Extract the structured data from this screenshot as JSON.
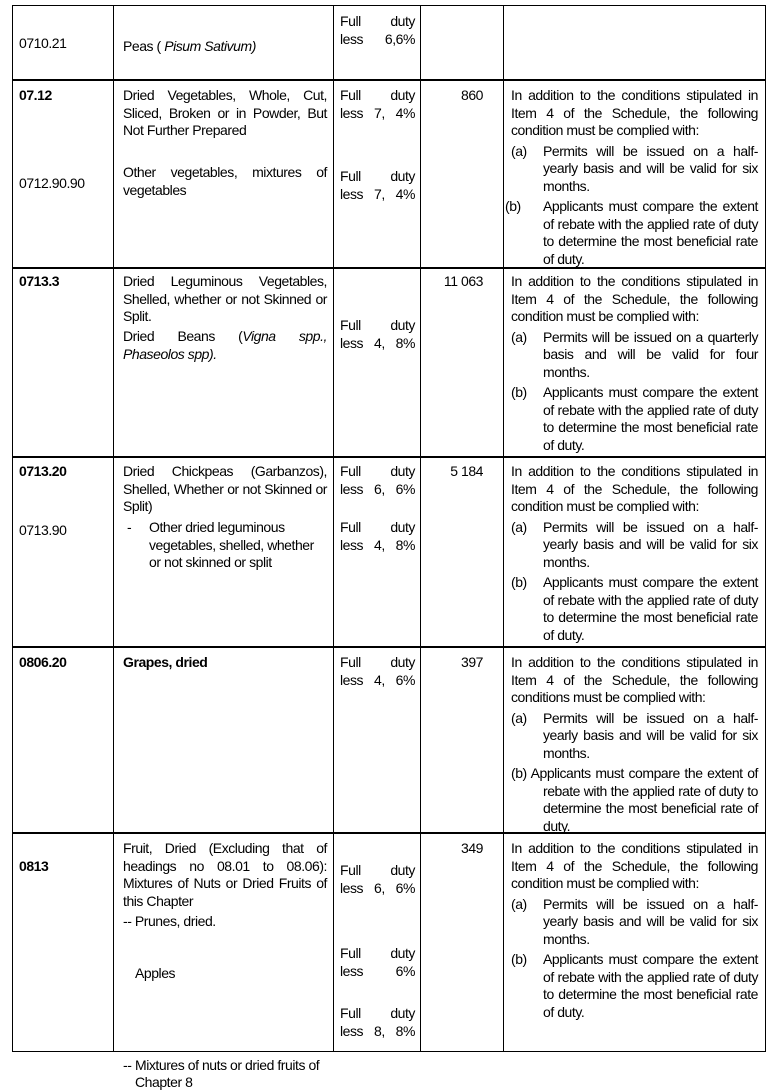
{
  "rows": [
    {
      "code": "0710.21",
      "desc_prefix": "Peas (",
      "desc_italic": " Pisum Sativum)",
      "duty": "Full duty less 6,6%"
    },
    {
      "code": "07.12",
      "code2": "0712.90.90",
      "desc": "Dried Vegetables, Whole, Cut, Sliced, Broken or in Powder, But Not Further Prepared",
      "desc2": "Other vegetables, mixtures of vegetables",
      "duty": "Full duty less 7, 4%",
      "duty2": "Full duty less 7, 4%",
      "qty": "860",
      "cond_intro": "In addition to the conditions stipulated in Item 4 of the Schedule, the following condition must be complied with:",
      "cond_a_mark": "(a)",
      "cond_a": "Permits will be issued on a half-yearly basis and will be valid for six months.",
      "cond_b_mark": "(b)",
      "cond_b": "Applicants must compare the extent of rebate with the applied rate of duty to determine the most beneficial rate of duty."
    },
    {
      "code": "0713.3",
      "desc": "Dried Leguminous Vegetables, Shelled, whether or not Skinned or Split.",
      "desc2_prefix": "Dried Beans (",
      "desc2_italic": "Vigna spp., Phaseolos spp).",
      "duty": "Full duty less 4, 8%",
      "qty": "11 063",
      "cond_intro": "In addition to the conditions stipulated in Item 4 of the Schedule, the following condition must be complied with:",
      "cond_a_mark": "(a)",
      "cond_a": "Permits will be issued on a quarterly basis and will be valid for four months.",
      "cond_b_mark": "(b)",
      "cond_b": "Applicants must compare the extent of rebate with the applied rate of duty to determine the most beneficial rate of duty."
    },
    {
      "code": "0713.20",
      "code2": "0713.90",
      "desc": "Dried Chickpeas (Garbanzos), Shelled, Whether or not Skinned or Split)",
      "desc2_mark": "-",
      "desc2": "Other dried leguminous vegetables, shelled, whether or not skinned or split",
      "duty": "Full duty less 6, 6%",
      "duty2": "Full duty less 4, 8%",
      "qty": "5 184",
      "cond_intro": "In addition to the conditions stipulated in Item 4 of the Schedule, the following condition must be complied with:",
      "cond_a_mark": "(a)",
      "cond_a": "Permits will be issued on a half-yearly basis and will be valid for six months.",
      "cond_b_mark": "(b)",
      "cond_b": "Applicants must compare the extent of rebate with the applied rate of duty to determine the most beneficial rate of duty."
    },
    {
      "code": "0806.20",
      "desc": "Grapes, dried",
      "duty": "Full duty less 4, 6%",
      "qty": "397",
      "cond_intro": "In addition to the conditions stipulated in Item 4 of the Schedule, the following conditions must be complied with:",
      "cond_a_mark": "(a)",
      "cond_a": "Permits will be issued on a half-yearly basis and will be valid for six months.",
      "cond_b": "(b) Applicants must compare the extent of rebate with the applied rate of duty to determine the most beneficial rate of duty."
    },
    {
      "code": "0813",
      "desc": "Fruit, Dried (Excluding that of headings no 08.01 to 08.06): Mixtures of Nuts or Dried Fruits of this Chapter",
      "desc2": "-- Prunes, dried.",
      "desc3": "Apples",
      "desc4_mark": "--",
      "desc4": "Mixtures of nuts or dried fruits of Chapter 8",
      "duty": "Full duty less 6, 6%",
      "duty2": "Full duty less 6%",
      "duty3": "Full duty less 8, 8%",
      "qty": "349",
      "cond_intro": "In addition to the conditions stipulated in Item 4 of the Schedule, the following condition must be complied with:",
      "cond_a_mark": "(a)",
      "cond_a": "Permits will be issued on a half-yearly basis and will be valid for six months.",
      "cond_b_mark": "(b)",
      "cond_b": "Applicants must compare the extent of rebate with the applied rate of duty to determine the most beneficial rate of duty."
    }
  ]
}
